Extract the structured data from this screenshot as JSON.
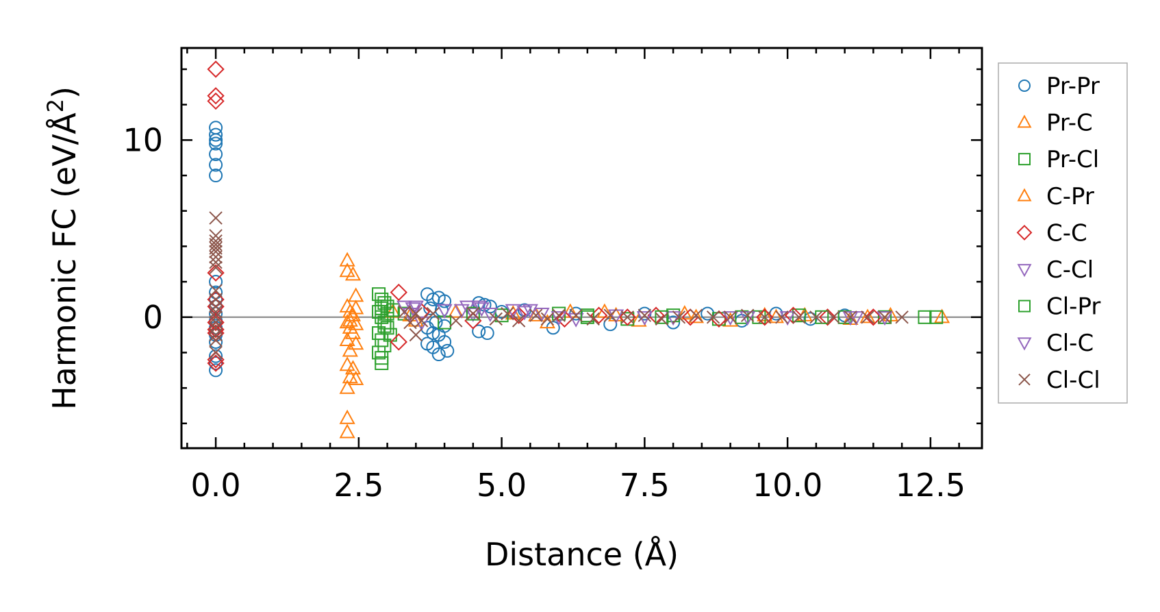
{
  "chart_data": {
    "type": "scatter",
    "xlabel": "Distance (Å)",
    "ylabel_main": "Harmonic FC (eV/Å",
    "ylabel_sup": "2",
    "ylabel_close": ")",
    "xlim": [
      -0.6,
      13.4
    ],
    "ylim": [
      -7.4,
      15.2
    ],
    "x_ticks": [
      0.0,
      2.5,
      5.0,
      7.5,
      10.0,
      12.5
    ],
    "x_tick_labels": [
      "0.0",
      "2.5",
      "5.0",
      "7.5",
      "10.0",
      "12.5"
    ],
    "x_minor_step": 0.5,
    "y_ticks": [
      0,
      10
    ],
    "y_tick_labels": [
      "0",
      "10"
    ],
    "y_minor_step": 2,
    "zero_line": true,
    "legend_position": "outside-right",
    "series": [
      {
        "name": "Pr-Pr",
        "marker": "circle",
        "color": "#1f77b4",
        "points": [
          [
            0,
            10.7
          ],
          [
            0,
            10.3
          ],
          [
            0,
            10.0
          ],
          [
            0,
            9.8
          ],
          [
            0,
            9.2
          ],
          [
            0,
            8.6
          ],
          [
            0,
            8.0
          ],
          [
            0,
            2.0
          ],
          [
            0,
            1.4
          ],
          [
            0,
            1.0
          ],
          [
            0,
            0.6
          ],
          [
            0,
            0.2
          ],
          [
            0,
            -0.2
          ],
          [
            0,
            -0.6
          ],
          [
            0,
            -1.0
          ],
          [
            0,
            -1.4
          ],
          [
            0,
            -2.2
          ],
          [
            0,
            -2.6
          ],
          [
            0,
            -3.0
          ],
          [
            3.7,
            1.3
          ],
          [
            3.8,
            1.0
          ],
          [
            3.9,
            1.1
          ],
          [
            4.0,
            0.9
          ],
          [
            3.75,
            0.5
          ],
          [
            3.95,
            0.4
          ],
          [
            3.7,
            -0.6
          ],
          [
            3.8,
            -0.9
          ],
          [
            3.9,
            -1.0
          ],
          [
            3.7,
            -1.5
          ],
          [
            3.8,
            -1.7
          ],
          [
            4.0,
            -1.4
          ],
          [
            3.9,
            -2.1
          ],
          [
            4.05,
            -1.9
          ],
          [
            3.85,
            -0.3
          ],
          [
            4.0,
            -0.5
          ],
          [
            4.6,
            0.8
          ],
          [
            4.7,
            0.7
          ],
          [
            4.8,
            0.6
          ],
          [
            4.6,
            -0.8
          ],
          [
            4.75,
            -0.9
          ],
          [
            5.0,
            0.3
          ],
          [
            5.4,
            0.4
          ],
          [
            5.9,
            -0.6
          ],
          [
            6.3,
            0.2
          ],
          [
            6.9,
            -0.4
          ],
          [
            7.5,
            0.2
          ],
          [
            8.0,
            -0.3
          ],
          [
            8.6,
            0.2
          ],
          [
            9.2,
            -0.2
          ],
          [
            9.8,
            0.2
          ],
          [
            10.4,
            -0.1
          ],
          [
            11.0,
            0.1
          ]
        ]
      },
      {
        "name": "Pr-C",
        "marker": "triangle-up",
        "color": "#ff7f0e",
        "points": [
          [
            2.3,
            3.2
          ],
          [
            2.3,
            2.6
          ],
          [
            2.4,
            2.4
          ],
          [
            2.45,
            1.2
          ],
          [
            2.3,
            0.6
          ],
          [
            2.35,
            0.3
          ],
          [
            2.4,
            0.1
          ],
          [
            2.3,
            -0.3
          ],
          [
            2.45,
            -0.4
          ],
          [
            2.35,
            -0.6
          ],
          [
            2.4,
            -0.9
          ],
          [
            2.3,
            -1.3
          ],
          [
            2.45,
            -1.5
          ],
          [
            2.35,
            -1.9
          ],
          [
            2.3,
            -2.7
          ],
          [
            2.4,
            -2.9
          ],
          [
            2.45,
            -3.5
          ],
          [
            2.35,
            -3.4
          ],
          [
            2.3,
            -4.0
          ],
          [
            2.3,
            -5.7
          ],
          [
            2.3,
            -6.5
          ],
          [
            3.1,
            0.3
          ],
          [
            3.5,
            -0.2
          ],
          [
            4.2,
            0.3
          ],
          [
            5.2,
            0.2
          ],
          [
            5.8,
            -0.3
          ],
          [
            6.2,
            0.3
          ],
          [
            6.8,
            0.3
          ],
          [
            7.4,
            -0.2
          ],
          [
            8.2,
            0.2
          ],
          [
            9.0,
            -0.2
          ],
          [
            9.6,
            0.1
          ],
          [
            10.3,
            0.1
          ],
          [
            11.1,
            -0.1
          ],
          [
            11.8,
            0.1
          ],
          [
            12.7,
            0.0
          ]
        ]
      },
      {
        "name": "Pr-Cl",
        "marker": "square",
        "color": "#2ca02c",
        "points": [
          [
            2.85,
            1.3
          ],
          [
            2.9,
            1.0
          ],
          [
            2.95,
            0.8
          ],
          [
            3.0,
            0.6
          ],
          [
            2.85,
            0.3
          ],
          [
            2.9,
            0.0
          ],
          [
            2.95,
            -0.3
          ],
          [
            3.0,
            -0.6
          ],
          [
            2.85,
            -0.9
          ],
          [
            2.9,
            -1.3
          ],
          [
            2.95,
            -1.6
          ],
          [
            2.85,
            -2.0
          ],
          [
            2.9,
            -2.3
          ],
          [
            2.9,
            -2.6
          ],
          [
            3.05,
            -1.0
          ],
          [
            3.1,
            0.4
          ],
          [
            3.3,
            0.2
          ],
          [
            4.0,
            -0.3
          ],
          [
            5.0,
            0.1
          ],
          [
            6.0,
            0.2
          ],
          [
            6.5,
            0.1
          ],
          [
            7.2,
            -0.1
          ],
          [
            8.0,
            0.1
          ],
          [
            8.8,
            -0.1
          ],
          [
            9.5,
            0.0
          ],
          [
            10.2,
            0.1
          ],
          [
            11.0,
            0.0
          ],
          [
            11.7,
            0.0
          ],
          [
            12.4,
            0.0
          ]
        ]
      },
      {
        "name": "C-Pr",
        "marker": "triangle-up",
        "color": "#ff7f0e",
        "points": [
          [
            2.35,
            -0.2
          ],
          [
            2.45,
            0.5
          ],
          [
            3.4,
            0.1
          ],
          [
            5.6,
            0.1
          ],
          [
            7.0,
            0.1
          ],
          [
            8.4,
            0.0
          ],
          [
            9.8,
            0.0
          ],
          [
            11.4,
            0.0
          ]
        ]
      },
      {
        "name": "C-C",
        "marker": "diamond",
        "color": "#d62728",
        "points": [
          [
            0,
            14.0
          ],
          [
            0,
            12.5
          ],
          [
            0,
            12.2
          ],
          [
            0,
            2.5
          ],
          [
            0,
            1.0
          ],
          [
            0,
            0.6
          ],
          [
            0,
            -0.3
          ],
          [
            0,
            -0.7
          ],
          [
            0,
            -0.9
          ],
          [
            0,
            -2.4
          ],
          [
            0,
            -2.6
          ],
          [
            3.2,
            1.4
          ],
          [
            3.2,
            -1.4
          ],
          [
            3.6,
            0.3
          ],
          [
            4.5,
            -0.2
          ],
          [
            5.3,
            0.1
          ],
          [
            6.1,
            -0.1
          ],
          [
            6.7,
            0.1
          ],
          [
            7.2,
            0.0
          ],
          [
            7.7,
            0.1
          ],
          [
            8.3,
            0.0
          ],
          [
            8.8,
            -0.1
          ],
          [
            9.6,
            0.0
          ],
          [
            10.1,
            0.1
          ],
          [
            10.7,
            0.0
          ],
          [
            11.5,
            0.0
          ]
        ]
      },
      {
        "name": "C-Cl",
        "marker": "triangle-down",
        "color": "#9467bd",
        "points": [
          [
            3.3,
            0.6
          ],
          [
            3.4,
            0.2
          ],
          [
            3.5,
            0.6
          ],
          [
            3.6,
            -0.3
          ],
          [
            4.0,
            0.4
          ],
          [
            4.4,
            0.6
          ],
          [
            4.5,
            0.2
          ],
          [
            4.6,
            0.6
          ],
          [
            4.8,
            0.2
          ],
          [
            5.2,
            0.4
          ],
          [
            5.5,
            0.4
          ],
          [
            5.7,
            0.2
          ],
          [
            6.3,
            -0.1
          ],
          [
            7.0,
            0.1
          ],
          [
            8.0,
            0.0
          ],
          [
            9.0,
            0.0
          ],
          [
            10.0,
            0.0
          ],
          [
            11.1,
            0.0
          ],
          [
            11.7,
            0.0
          ]
        ]
      },
      {
        "name": "Cl-Pr",
        "marker": "square",
        "color": "#2ca02c",
        "points": [
          [
            2.9,
            0.5
          ],
          [
            2.95,
            -0.5
          ],
          [
            3.0,
            0.2
          ],
          [
            4.5,
            0.2
          ],
          [
            6.5,
            0.0
          ],
          [
            7.8,
            0.0
          ],
          [
            9.2,
            0.0
          ],
          [
            10.6,
            0.0
          ],
          [
            12.6,
            0.0
          ]
        ]
      },
      {
        "name": "Cl-C",
        "marker": "triangle-down",
        "color": "#9467bd",
        "points": [
          [
            3.45,
            0.5
          ],
          [
            4.3,
            0.4
          ],
          [
            4.65,
            0.5
          ],
          [
            5.4,
            0.3
          ],
          [
            6.0,
            0.0
          ],
          [
            7.5,
            0.0
          ],
          [
            9.3,
            0.0
          ],
          [
            11.2,
            0.0
          ]
        ]
      },
      {
        "name": "Cl-Cl",
        "marker": "x",
        "color": "#8c564b",
        "points": [
          [
            0,
            5.6
          ],
          [
            0,
            4.6
          ],
          [
            0,
            4.3
          ],
          [
            0,
            4.1
          ],
          [
            0,
            3.9
          ],
          [
            0,
            3.7
          ],
          [
            0,
            3.4
          ],
          [
            0,
            3.1
          ],
          [
            0,
            2.8
          ],
          [
            0,
            1.5
          ],
          [
            0,
            1.0
          ],
          [
            0,
            0.6
          ],
          [
            0,
            0.3
          ],
          [
            0,
            0.0
          ],
          [
            0,
            -0.3
          ],
          [
            0,
            -0.6
          ],
          [
            0,
            -1.0
          ],
          [
            0,
            -1.3
          ],
          [
            0,
            -2.0
          ],
          [
            3.3,
            0.3
          ],
          [
            3.4,
            -0.3
          ],
          [
            3.5,
            0.2
          ],
          [
            3.6,
            -0.2
          ],
          [
            3.5,
            -1.0
          ],
          [
            3.8,
            0.2
          ],
          [
            4.2,
            -0.2
          ],
          [
            4.5,
            0.2
          ],
          [
            4.9,
            -0.1
          ],
          [
            5.1,
            0.2
          ],
          [
            5.3,
            -0.2
          ],
          [
            5.6,
            0.1
          ],
          [
            5.8,
            -0.1
          ],
          [
            6.0,
            0.1
          ],
          [
            6.3,
            0.1
          ],
          [
            6.6,
            -0.1
          ],
          [
            6.9,
            0.1
          ],
          [
            7.2,
            0.0
          ],
          [
            7.5,
            0.1
          ],
          [
            7.8,
            -0.1
          ],
          [
            8.1,
            0.0
          ],
          [
            8.4,
            0.1
          ],
          [
            8.7,
            0.0
          ],
          [
            9.0,
            0.0
          ],
          [
            9.3,
            0.1
          ],
          [
            9.6,
            0.0
          ],
          [
            9.9,
            0.0
          ],
          [
            10.2,
            0.0
          ],
          [
            10.5,
            0.0
          ],
          [
            10.8,
            0.0
          ],
          [
            11.1,
            0.0
          ],
          [
            11.4,
            0.0
          ],
          [
            11.7,
            0.0
          ],
          [
            12.0,
            0.0
          ]
        ]
      }
    ]
  }
}
